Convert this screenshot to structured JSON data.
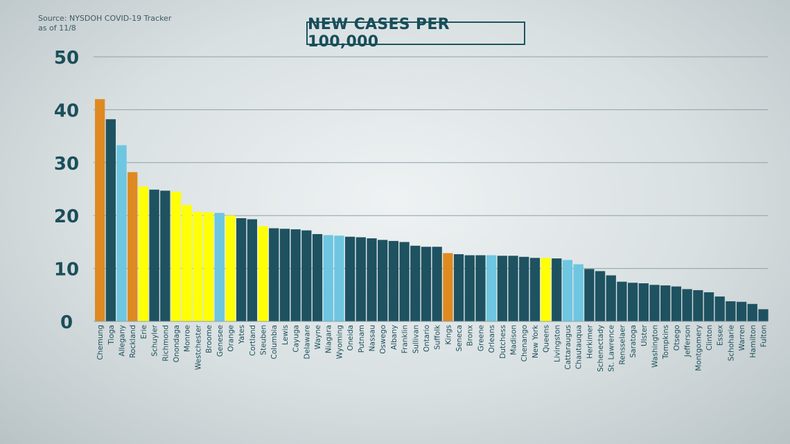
{
  "source": {
    "line1": "Source: NYSDOH COVID-19 Tracker",
    "line2": "as of 11/8"
  },
  "chart_data": {
    "type": "bar",
    "title": "NEW CASES PER 100,000",
    "xlabel": "",
    "ylabel": "",
    "ylim": [
      0,
      50
    ],
    "yticks": [
      0,
      10,
      20,
      30,
      40,
      50
    ],
    "grid": true,
    "legend": "none",
    "colors": {
      "dark": "#1e5261",
      "orange": "#df8a21",
      "yellow": "#ffff05",
      "blue": "#6ec6e0"
    },
    "categories": [
      "Chemung",
      "Tioga",
      "Allegany",
      "Rockland",
      "Erie",
      "Schuyler",
      "Richmond",
      "Onondaga",
      "Monroe",
      "Westchester",
      "Broome",
      "Genesee",
      "Orange",
      "Yates",
      "Cortland",
      "Steuben",
      "Columbia",
      "Lewis",
      "Cayuga",
      "Delaware",
      "Wayne",
      "Niagara",
      "Wyoming",
      "Oneida",
      "Putnam",
      "Nassau",
      "Oswego",
      "Albany",
      "Franklin",
      "Sullivan",
      "Ontario",
      "Suffolk",
      "Kings",
      "Seneca",
      "Bronx",
      "Greene",
      "Orleans",
      "Dutchess",
      "Madison",
      "Chenango",
      "New York",
      "Queens",
      "Livingston",
      "Cattaraugus",
      "Chautauqua",
      "Herkimer",
      "Schenectady",
      "St. Lawrence",
      "Rensselaer",
      "Saratoga",
      "Ulster",
      "Washington",
      "Tompkins",
      "Otsego",
      "Jefferson",
      "Montgomery",
      "Clinton",
      "Essex",
      "Schoharie",
      "Warren",
      "Hamilton",
      "Fulton"
    ],
    "values": [
      42,
      38.2,
      33.3,
      28.2,
      25.5,
      24.9,
      24.7,
      24.5,
      22,
      20.7,
      20.6,
      20.5,
      20,
      19.5,
      19.3,
      18,
      17.6,
      17.5,
      17.4,
      17.2,
      16.5,
      16.3,
      16.2,
      16,
      15.9,
      15.7,
      15.4,
      15.2,
      15,
      14.3,
      14.1,
      14.1,
      12.9,
      12.7,
      12.5,
      12.5,
      12.5,
      12.4,
      12.4,
      12.2,
      12,
      12,
      11.9,
      11.6,
      10.8,
      9.9,
      9.5,
      8.7,
      7.5,
      7.3,
      7.2,
      6.9,
      6.8,
      6.6,
      6.1,
      5.9,
      5.5,
      4.7,
      3.8,
      3.7,
      3.3,
      2.3
    ],
    "bar_colors": [
      "orange",
      "dark",
      "blue",
      "orange",
      "yellow",
      "dark",
      "dark",
      "yellow",
      "yellow",
      "yellow",
      "yellow",
      "blue",
      "yellow",
      "dark",
      "dark",
      "yellow",
      "dark",
      "dark",
      "dark",
      "dark",
      "dark",
      "blue",
      "blue",
      "dark",
      "dark",
      "dark",
      "dark",
      "dark",
      "dark",
      "dark",
      "dark",
      "dark",
      "orange",
      "dark",
      "dark",
      "dark",
      "blue",
      "dark",
      "dark",
      "dark",
      "dark",
      "yellow",
      "dark",
      "blue",
      "blue",
      "dark",
      "dark",
      "dark",
      "dark",
      "dark",
      "dark",
      "dark",
      "dark",
      "dark",
      "dark",
      "dark",
      "dark",
      "dark",
      "dark",
      "dark",
      "dark",
      "dark"
    ]
  }
}
